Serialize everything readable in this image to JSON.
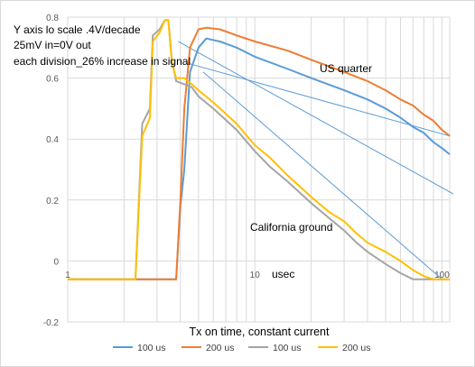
{
  "chart_data": {
    "type": "line",
    "title": "",
    "xlabel": "Tx on time, constant current",
    "ylabel": "",
    "x_scale": "log",
    "xlim": [
      1,
      110
    ],
    "ylim": [
      -0.2,
      0.8
    ],
    "x_ticks": [
      "1",
      "10",
      "100"
    ],
    "y_ticks": [
      "-0.2",
      "0",
      "0.2",
      "0.4",
      "0.6",
      "0.8"
    ],
    "grid": true,
    "legend_position": "bottom",
    "annotations": [
      "Y axis lo scale .4V/decade",
      "25mV in=0V out",
      "each division_26% increase in signal",
      "US quarter",
      "California ground",
      "usec"
    ],
    "series": [
      {
        "name": "100 us",
        "color": "#5b9bd5",
        "points": [
          [
            1,
            -0.06
          ],
          [
            3.8,
            -0.06
          ],
          [
            4.0,
            0.18
          ],
          [
            4.2,
            0.3
          ],
          [
            4.5,
            0.62
          ],
          [
            5.0,
            0.7
          ],
          [
            5.5,
            0.73
          ],
          [
            6.5,
            0.72
          ],
          [
            8,
            0.7
          ],
          [
            10,
            0.67
          ],
          [
            15,
            0.63
          ],
          [
            20,
            0.6
          ],
          [
            30,
            0.56
          ],
          [
            40,
            0.53
          ],
          [
            50,
            0.5
          ],
          [
            60,
            0.47
          ],
          [
            70,
            0.44
          ],
          [
            80,
            0.42
          ],
          [
            90,
            0.39
          ],
          [
            100,
            0.37
          ],
          [
            110,
            0.35
          ]
        ]
      },
      {
        "name": "200 us",
        "color": "#ed7d31",
        "points": [
          [
            1,
            -0.06
          ],
          [
            3.8,
            -0.06
          ],
          [
            4.0,
            0.2
          ],
          [
            4.2,
            0.5
          ],
          [
            4.5,
            0.7
          ],
          [
            5.0,
            0.76
          ],
          [
            5.5,
            0.765
          ],
          [
            6.5,
            0.76
          ],
          [
            8,
            0.74
          ],
          [
            10,
            0.72
          ],
          [
            15,
            0.69
          ],
          [
            20,
            0.66
          ],
          [
            30,
            0.62
          ],
          [
            40,
            0.59
          ],
          [
            50,
            0.56
          ],
          [
            60,
            0.53
          ],
          [
            70,
            0.51
          ],
          [
            80,
            0.48
          ],
          [
            90,
            0.46
          ],
          [
            100,
            0.43
          ],
          [
            110,
            0.41
          ]
        ]
      },
      {
        "name": "100 us",
        "color": "#a5a5a5",
        "points": [
          [
            1,
            -0.06
          ],
          [
            2.3,
            -0.06
          ],
          [
            2.5,
            0.45
          ],
          [
            2.75,
            0.5
          ],
          [
            2.85,
            0.74
          ],
          [
            3.1,
            0.76
          ],
          [
            3.3,
            0.79
          ],
          [
            3.45,
            0.79
          ],
          [
            3.6,
            0.66
          ],
          [
            3.8,
            0.59
          ],
          [
            4.2,
            0.58
          ],
          [
            4.6,
            0.57
          ],
          [
            5,
            0.54
          ],
          [
            6,
            0.5
          ],
          [
            8,
            0.43
          ],
          [
            10,
            0.36
          ],
          [
            12,
            0.31
          ],
          [
            15,
            0.26
          ],
          [
            20,
            0.19
          ],
          [
            25,
            0.14
          ],
          [
            30,
            0.1
          ],
          [
            35,
            0.06
          ],
          [
            40,
            0.03
          ],
          [
            50,
            -0.01
          ],
          [
            60,
            -0.04
          ],
          [
            70,
            -0.06
          ],
          [
            110,
            -0.06
          ]
        ]
      },
      {
        "name": "200 us",
        "color": "#ffc000",
        "points": [
          [
            1,
            -0.06
          ],
          [
            2.3,
            -0.06
          ],
          [
            2.5,
            0.41
          ],
          [
            2.75,
            0.47
          ],
          [
            2.85,
            0.72
          ],
          [
            3.1,
            0.75
          ],
          [
            3.3,
            0.79
          ],
          [
            3.45,
            0.79
          ],
          [
            3.6,
            0.65
          ],
          [
            3.8,
            0.6
          ],
          [
            4.2,
            0.6
          ],
          [
            4.6,
            0.58
          ],
          [
            5,
            0.56
          ],
          [
            6,
            0.52
          ],
          [
            8,
            0.45
          ],
          [
            10,
            0.38
          ],
          [
            12,
            0.34
          ],
          [
            15,
            0.28
          ],
          [
            20,
            0.21
          ],
          [
            25,
            0.16
          ],
          [
            30,
            0.13
          ],
          [
            35,
            0.09
          ],
          [
            40,
            0.06
          ],
          [
            50,
            0.03
          ],
          [
            60,
            0.0
          ],
          [
            70,
            -0.03
          ],
          [
            80,
            -0.05
          ],
          [
            90,
            -0.06
          ],
          [
            110,
            -0.06
          ]
        ]
      }
    ],
    "trendlines": [
      {
        "color": "#5b9bd5",
        "points": [
          [
            3.9,
            0.72
          ],
          [
            115,
            0.22
          ]
        ]
      },
      {
        "color": "#5b9bd5",
        "points": [
          [
            4.3,
            0.65
          ],
          [
            110,
            0.41
          ]
        ]
      },
      {
        "color": "#5b9bd5",
        "points": [
          [
            5.3,
            0.62
          ],
          [
            100,
            -0.06
          ]
        ]
      }
    ]
  }
}
